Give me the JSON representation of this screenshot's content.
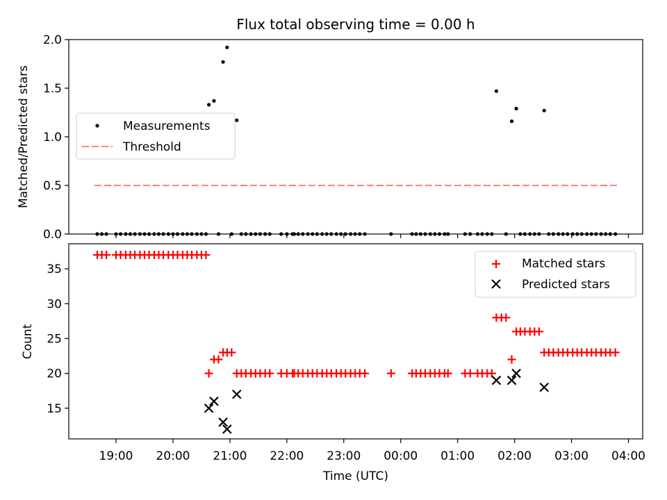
{
  "chart_data": [
    {
      "type": "scatter",
      "title": "Flux total observing time = 0.00 h",
      "xlabel": "",
      "ylabel": "Matched/Predicted stars",
      "ylim": [
        0,
        2.0
      ],
      "yticks": [
        "0.0",
        "0.5",
        "1.0",
        "1.5",
        "2.0"
      ],
      "legend": {
        "placement": "center-left",
        "entries": [
          "Measurements",
          "Threshold"
        ]
      },
      "series": [
        {
          "name": "Measurements",
          "color": "#000000",
          "marker": "dot",
          "points": [
            [
              18.67,
              0
            ],
            [
              18.75,
              0
            ],
            [
              18.83,
              0
            ],
            [
              19.0,
              0
            ],
            [
              19.08,
              0
            ],
            [
              19.17,
              0
            ],
            [
              19.25,
              0
            ],
            [
              19.33,
              0
            ],
            [
              19.42,
              0
            ],
            [
              19.5,
              0
            ],
            [
              19.58,
              0
            ],
            [
              19.67,
              0
            ],
            [
              19.75,
              0
            ],
            [
              19.83,
              0
            ],
            [
              19.92,
              0
            ],
            [
              20.0,
              0
            ],
            [
              20.08,
              0
            ],
            [
              20.17,
              0
            ],
            [
              20.25,
              0
            ],
            [
              20.33,
              0
            ],
            [
              20.42,
              0
            ],
            [
              20.5,
              0
            ],
            [
              20.58,
              0
            ],
            [
              20.63,
              1.33
            ],
            [
              20.72,
              1.37
            ],
            [
              20.8,
              0
            ],
            [
              20.88,
              1.77
            ],
            [
              20.95,
              1.92
            ],
            [
              21.03,
              0
            ],
            [
              21.12,
              1.17
            ],
            [
              21.2,
              0
            ],
            [
              21.28,
              0
            ],
            [
              21.37,
              0
            ],
            [
              21.45,
              0
            ],
            [
              21.53,
              0
            ],
            [
              21.62,
              0
            ],
            [
              21.7,
              0
            ],
            [
              21.9,
              0
            ],
            [
              22.0,
              0
            ],
            [
              22.1,
              0
            ],
            [
              22.13,
              0
            ],
            [
              22.2,
              0
            ],
            [
              22.28,
              0
            ],
            [
              22.37,
              0
            ],
            [
              22.45,
              0
            ],
            [
              22.53,
              0
            ],
            [
              22.62,
              0
            ],
            [
              22.7,
              0
            ],
            [
              22.78,
              0
            ],
            [
              22.87,
              0
            ],
            [
              22.95,
              0
            ],
            [
              23.03,
              0
            ],
            [
              23.12,
              0
            ],
            [
              23.2,
              0
            ],
            [
              23.28,
              0
            ],
            [
              23.37,
              0
            ],
            [
              23.83,
              0
            ],
            [
              24.2,
              0
            ],
            [
              24.27,
              0
            ],
            [
              24.35,
              0
            ],
            [
              24.43,
              0
            ],
            [
              24.52,
              0
            ],
            [
              24.6,
              0
            ],
            [
              24.68,
              0
            ],
            [
              24.77,
              0
            ],
            [
              24.83,
              0
            ],
            [
              25.13,
              0
            ],
            [
              25.22,
              0
            ],
            [
              25.35,
              0
            ],
            [
              25.43,
              0
            ],
            [
              25.52,
              0
            ],
            [
              25.6,
              0
            ],
            [
              25.68,
              1.47
            ],
            [
              25.85,
              0
            ],
            [
              25.95,
              1.16
            ],
            [
              26.03,
              1.29
            ],
            [
              26.1,
              0
            ],
            [
              26.18,
              0
            ],
            [
              26.27,
              0
            ],
            [
              26.35,
              0
            ],
            [
              26.43,
              0
            ],
            [
              26.52,
              1.27
            ],
            [
              26.6,
              0
            ],
            [
              26.68,
              0
            ],
            [
              26.77,
              0
            ],
            [
              26.85,
              0
            ],
            [
              26.93,
              0
            ],
            [
              27.02,
              0
            ],
            [
              27.1,
              0
            ],
            [
              27.18,
              0
            ],
            [
              27.27,
              0
            ],
            [
              27.35,
              0
            ],
            [
              27.43,
              0
            ],
            [
              27.52,
              0
            ],
            [
              27.6,
              0
            ],
            [
              27.68,
              0
            ],
            [
              27.77,
              0
            ]
          ]
        },
        {
          "name": "Threshold",
          "color": "#ff7f7f",
          "style": "dashed",
          "points": [
            [
              18.62,
              0.5
            ],
            [
              27.82,
              0.5
            ]
          ]
        }
      ]
    },
    {
      "type": "scatter",
      "title": "",
      "xlabel": "Time (UTC)",
      "ylabel": "Count",
      "ylim": [
        10.6,
        38.6
      ],
      "yticks": [
        "15",
        "20",
        "25",
        "30",
        "35"
      ],
      "xlim": [
        18.17,
        28.25
      ],
      "xticks": [
        {
          "value": 19,
          "label": "19:00"
        },
        {
          "value": 20,
          "label": "20:00"
        },
        {
          "value": 21,
          "label": "21:00"
        },
        {
          "value": 22,
          "label": "22:00"
        },
        {
          "value": 23,
          "label": "23:00"
        },
        {
          "value": 24,
          "label": "00:00"
        },
        {
          "value": 25,
          "label": "01:00"
        },
        {
          "value": 26,
          "label": "02:00"
        },
        {
          "value": 27,
          "label": "03:00"
        },
        {
          "value": 28,
          "label": "04:00"
        }
      ],
      "legend": {
        "placement": "upper-right",
        "entries": [
          "Matched stars",
          "Predicted stars"
        ]
      },
      "series": [
        {
          "name": "Matched stars",
          "color": "#ff0000",
          "marker": "plus",
          "points": [
            [
              18.67,
              37
            ],
            [
              18.75,
              37
            ],
            [
              18.83,
              37
            ],
            [
              19.0,
              37
            ],
            [
              19.08,
              37
            ],
            [
              19.17,
              37
            ],
            [
              19.25,
              37
            ],
            [
              19.33,
              37
            ],
            [
              19.42,
              37
            ],
            [
              19.5,
              37
            ],
            [
              19.58,
              37
            ],
            [
              19.67,
              37
            ],
            [
              19.75,
              37
            ],
            [
              19.83,
              37
            ],
            [
              19.92,
              37
            ],
            [
              20.0,
              37
            ],
            [
              20.08,
              37
            ],
            [
              20.17,
              37
            ],
            [
              20.25,
              37
            ],
            [
              20.33,
              37
            ],
            [
              20.42,
              37
            ],
            [
              20.5,
              37
            ],
            [
              20.58,
              37
            ],
            [
              20.63,
              20
            ],
            [
              20.72,
              22
            ],
            [
              20.8,
              22
            ],
            [
              20.88,
              23
            ],
            [
              20.95,
              23
            ],
            [
              21.03,
              23
            ],
            [
              21.12,
              20
            ],
            [
              21.2,
              20
            ],
            [
              21.28,
              20
            ],
            [
              21.37,
              20
            ],
            [
              21.45,
              20
            ],
            [
              21.53,
              20
            ],
            [
              21.62,
              20
            ],
            [
              21.7,
              20
            ],
            [
              21.9,
              20
            ],
            [
              22.0,
              20
            ],
            [
              22.1,
              20
            ],
            [
              22.13,
              20
            ],
            [
              22.2,
              20
            ],
            [
              22.28,
              20
            ],
            [
              22.37,
              20
            ],
            [
              22.45,
              20
            ],
            [
              22.53,
              20
            ],
            [
              22.62,
              20
            ],
            [
              22.7,
              20
            ],
            [
              22.78,
              20
            ],
            [
              22.87,
              20
            ],
            [
              22.95,
              20
            ],
            [
              23.03,
              20
            ],
            [
              23.12,
              20
            ],
            [
              23.2,
              20
            ],
            [
              23.28,
              20
            ],
            [
              23.37,
              20
            ],
            [
              23.83,
              20
            ],
            [
              24.2,
              20
            ],
            [
              24.27,
              20
            ],
            [
              24.35,
              20
            ],
            [
              24.43,
              20
            ],
            [
              24.52,
              20
            ],
            [
              24.6,
              20
            ],
            [
              24.68,
              20
            ],
            [
              24.77,
              20
            ],
            [
              24.83,
              20
            ],
            [
              25.13,
              20
            ],
            [
              25.22,
              20
            ],
            [
              25.35,
              20
            ],
            [
              25.43,
              20
            ],
            [
              25.52,
              20
            ],
            [
              25.6,
              20
            ],
            [
              25.68,
              28
            ],
            [
              25.77,
              28
            ],
            [
              25.85,
              28
            ],
            [
              25.95,
              22
            ],
            [
              26.03,
              26
            ],
            [
              26.1,
              26
            ],
            [
              26.18,
              26
            ],
            [
              26.27,
              26
            ],
            [
              26.35,
              26
            ],
            [
              26.43,
              26
            ],
            [
              26.52,
              23
            ],
            [
              26.6,
              23
            ],
            [
              26.68,
              23
            ],
            [
              26.77,
              23
            ],
            [
              26.85,
              23
            ],
            [
              26.93,
              23
            ],
            [
              27.02,
              23
            ],
            [
              27.1,
              23
            ],
            [
              27.18,
              23
            ],
            [
              27.27,
              23
            ],
            [
              27.35,
              23
            ],
            [
              27.43,
              23
            ],
            [
              27.52,
              23
            ],
            [
              27.6,
              23
            ],
            [
              27.68,
              23
            ],
            [
              27.77,
              23
            ]
          ]
        },
        {
          "name": "Predicted stars",
          "color": "#000000",
          "marker": "x",
          "points": [
            [
              20.63,
              15
            ],
            [
              20.72,
              16
            ],
            [
              20.88,
              13
            ],
            [
              20.95,
              12
            ],
            [
              21.12,
              17
            ],
            [
              25.68,
              19
            ],
            [
              25.95,
              19
            ],
            [
              26.03,
              20
            ],
            [
              26.52,
              18
            ]
          ]
        }
      ]
    }
  ]
}
